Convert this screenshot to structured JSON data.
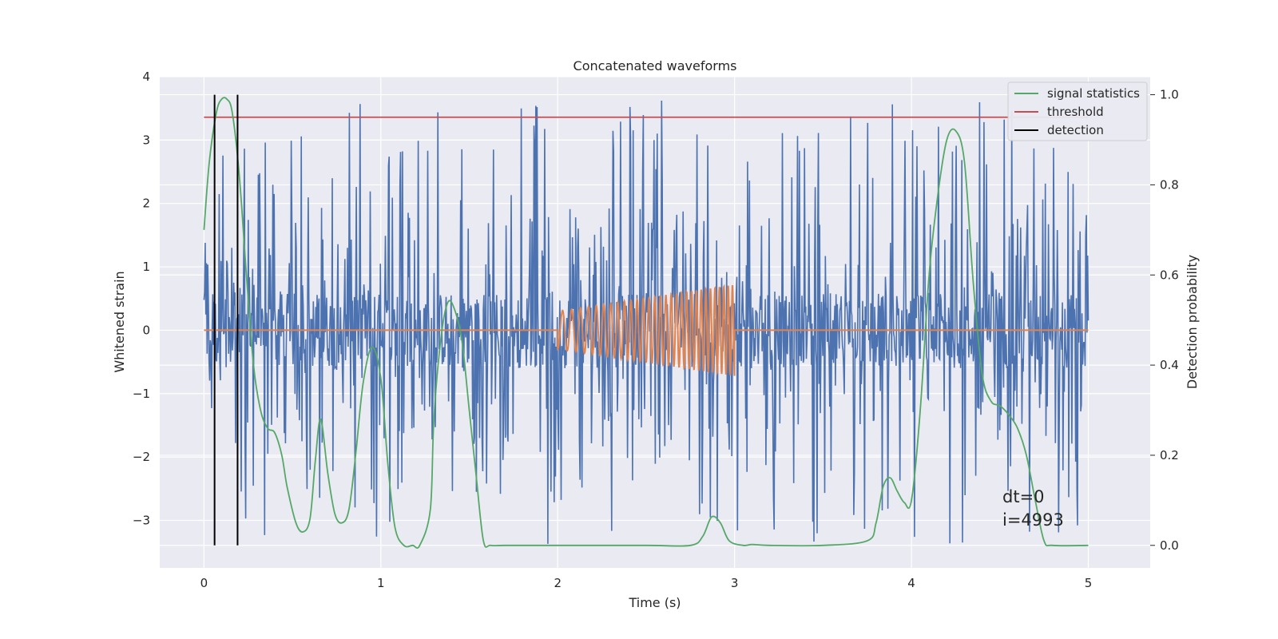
{
  "chart_data": {
    "type": "line",
    "title": "Concatenated waveforms",
    "xlabel": "Time (s)",
    "ylabel": "Whitened strain",
    "ylabel_right": "Detection probability",
    "xlim": [
      -0.25,
      5.35
    ],
    "ylim": [
      -3.75,
      4.0
    ],
    "ylim_right": [
      -0.05,
      1.04
    ],
    "x_ticks": [
      0,
      1,
      2,
      3,
      4,
      5
    ],
    "y_ticks": [
      -3,
      -2,
      -1,
      0,
      1,
      2,
      3,
      4
    ],
    "y_ticks_right": [
      0.0,
      0.2,
      0.4,
      0.6,
      0.8,
      1.0
    ],
    "x_tick_labels": [
      "0",
      "1",
      "2",
      "3",
      "4",
      "5"
    ],
    "y_tick_labels": [
      "−3",
      "−2",
      "−1",
      "0",
      "1",
      "2",
      "3",
      "4"
    ],
    "y_tick_labels_right": [
      "0.0",
      "0.2",
      "0.4",
      "0.6",
      "0.8",
      "1.0"
    ],
    "grid": true,
    "legend_position": "top-right",
    "colors": {
      "strain": "#4c72b0",
      "injection": "#dd8452",
      "statistic": "#55a868",
      "threshold": "#c44e52",
      "detection": "#000000",
      "background": "#eaeaf2",
      "grid": "#ffffff"
    },
    "series": [
      {
        "name": "",
        "axis": "left",
        "kind": "noise",
        "x_range": [
          0,
          5
        ],
        "band_abs_max": 0.6,
        "spike_max": 3.65,
        "spike_min": -3.4
      },
      {
        "name": "",
        "axis": "left",
        "kind": "chirp",
        "x_range": [
          2,
          3
        ],
        "amplitude_start": 0.3,
        "amplitude_end": 0.72,
        "cycles": 30
      },
      {
        "name": "signal statistics",
        "axis": "right",
        "x": [
          0,
          0.03,
          0.07,
          0.1,
          0.13,
          0.16,
          0.2,
          0.24,
          0.28,
          0.32,
          0.36,
          0.4,
          0.44,
          0.47,
          0.52,
          0.56,
          0.6,
          0.63,
          0.66,
          0.7,
          0.74,
          0.78,
          0.82,
          0.86,
          0.9,
          0.95,
          1.0,
          1.04,
          1.08,
          1.13,
          1.18,
          1.22,
          1.28,
          1.3,
          1.34,
          1.38,
          1.42,
          1.46,
          1.5,
          1.54,
          1.58,
          1.62,
          1.7,
          2.0,
          2.5,
          2.75,
          2.82,
          2.87,
          2.92,
          2.97,
          3.05,
          3.1,
          3.2,
          3.5,
          3.75,
          3.8,
          3.84,
          3.88,
          3.92,
          3.96,
          4.0,
          4.05,
          4.1,
          4.15,
          4.2,
          4.25,
          4.3,
          4.35,
          4.4,
          4.45,
          4.5,
          4.55,
          4.6,
          4.65,
          4.7,
          4.75,
          4.8,
          5.0
        ],
        "values": [
          0.7,
          0.85,
          0.96,
          0.99,
          0.99,
          0.96,
          0.82,
          0.6,
          0.4,
          0.3,
          0.26,
          0.25,
          0.2,
          0.13,
          0.05,
          0.03,
          0.06,
          0.19,
          0.28,
          0.16,
          0.07,
          0.05,
          0.08,
          0.21,
          0.36,
          0.44,
          0.37,
          0.18,
          0.04,
          0.0,
          0.0,
          0.0,
          0.08,
          0.28,
          0.46,
          0.54,
          0.52,
          0.45,
          0.3,
          0.15,
          0.01,
          0.0,
          0.0,
          0.0,
          0.0,
          0.0,
          0.02,
          0.063,
          0.05,
          0.01,
          0.0,
          0.002,
          0.0,
          0.0,
          0.01,
          0.05,
          0.13,
          0.15,
          0.12,
          0.095,
          0.1,
          0.3,
          0.6,
          0.78,
          0.9,
          0.92,
          0.85,
          0.58,
          0.38,
          0.32,
          0.31,
          0.29,
          0.26,
          0.2,
          0.1,
          0.01,
          0.0,
          0.0
        ]
      },
      {
        "name": "threshold",
        "axis": "right",
        "x": [
          0,
          5
        ],
        "values": [
          0.95,
          0.95
        ]
      },
      {
        "name": "detection",
        "axis": "right",
        "x": [
          0.06,
          0.19
        ],
        "values": [
          1.0,
          1.0
        ]
      }
    ],
    "annotations": [
      "dt=0",
      "i=4993"
    ]
  }
}
